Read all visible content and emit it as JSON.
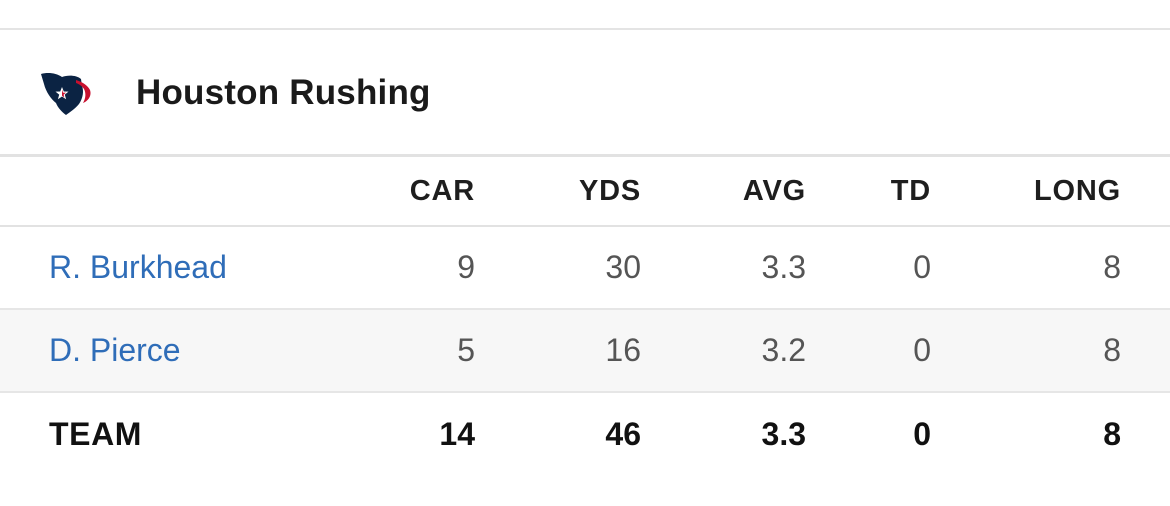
{
  "header": {
    "title": "Houston Rushing",
    "logo_icon": "houston-texans-logo-icon",
    "logo_colors": {
      "navy": "#0b2343",
      "red": "#c8102e"
    }
  },
  "table": {
    "columns": [
      "CAR",
      "YDS",
      "AVG",
      "TD",
      "LONG"
    ],
    "rows": [
      {
        "name": "R. Burkhead",
        "car": "9",
        "yds": "30",
        "avg": "3.3",
        "td": "0",
        "long": "8"
      },
      {
        "name": "D. Pierce",
        "car": "5",
        "yds": "16",
        "avg": "3.2",
        "td": "0",
        "long": "8"
      }
    ],
    "total": {
      "name": "TEAM",
      "car": "14",
      "yds": "46",
      "avg": "3.3",
      "td": "0",
      "long": "8"
    }
  },
  "colors": {
    "player_link": "#2f6db8",
    "row_alt_bg": "#f7f7f7",
    "divider": "#e2e2e2"
  }
}
